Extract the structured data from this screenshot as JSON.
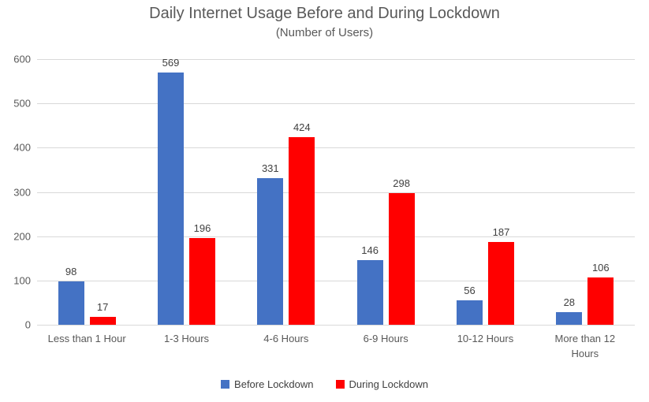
{
  "chart_data": {
    "type": "bar",
    "title": "Daily Internet Usage Before and During Lockdown",
    "subtitle": "(Number of Users)",
    "categories": [
      "Less than 1 Hour",
      "1-3 Hours",
      "4-6 Hours",
      "6-9 Hours",
      "10-12 Hours",
      "More than 12 Hours"
    ],
    "series": [
      {
        "name": "Before Lockdown",
        "color": "#4472C4",
        "values": [
          98,
          569,
          331,
          146,
          56,
          28
        ]
      },
      {
        "name": "During Lockdown",
        "color": "#FF0000",
        "values": [
          17,
          196,
          424,
          298,
          187,
          106
        ]
      }
    ],
    "xlabel": "",
    "ylabel": "",
    "ylim": [
      0,
      600
    ],
    "ytick_step": 100,
    "grid": true,
    "legend_position": "bottom",
    "colors": {
      "title_text": "#595959",
      "axis_text": "#595959",
      "value_label_text": "#404040",
      "gridline": "#D9D9D9",
      "background": "#FFFFFF"
    }
  }
}
